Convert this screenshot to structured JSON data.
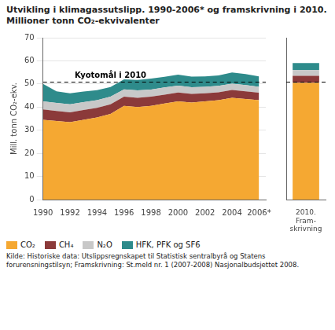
{
  "chart_data": [
    {
      "type": "area",
      "title": "Utvikling i klimagassutslipp. 1990-2006* og framskrivning i 2010.",
      "subtitle": "Millioner tonn CO₂-ekvivalenter",
      "ylabel": "Mill. tonn CO₂-ekv.",
      "source": "Kilde: Historiske data: Utslippsregnskapet til Statistisk sentralbyrå og Statens forurensningstilsyn; Framskrivning: St.meld nr. 1 (2007-2008) Nasjonalbudsjettet 2008.",
      "x": [
        1990,
        1991,
        1992,
        1993,
        1994,
        1995,
        1996,
        1997,
        1998,
        1999,
        2000,
        2001,
        2002,
        2003,
        2004,
        2005,
        2006
      ],
      "series": [
        {
          "name": "CO₂",
          "color": "#F5A832",
          "values": [
            34.5,
            34.0,
            33.5,
            34.5,
            35.5,
            37.0,
            40.5,
            40.0,
            40.5,
            41.5,
            42.5,
            42.0,
            42.5,
            43.0,
            44.0,
            43.5,
            43.0
          ]
        },
        {
          "name": "CH₄",
          "color": "#8B3A3A",
          "values": [
            4.5,
            4.3,
            4.2,
            4.2,
            4.2,
            4.2,
            4.0,
            4.0,
            4.0,
            3.9,
            3.8,
            3.7,
            3.5,
            3.4,
            3.4,
            3.3,
            3.2
          ]
        },
        {
          "name": "N₂O",
          "color": "#C8C8C8",
          "values": [
            3.5,
            3.5,
            3.5,
            3.4,
            3.3,
            3.3,
            3.2,
            3.2,
            3.1,
            3.1,
            3.0,
            2.9,
            2.8,
            2.8,
            2.7,
            2.7,
            2.6
          ]
        },
        {
          "name": "HFK, PFK og SF6",
          "color": "#2E8B8B",
          "values": [
            7.5,
            5.0,
            4.8,
            4.6,
            4.3,
            4.2,
            4.3,
            4.5,
            4.7,
            4.6,
            4.7,
            4.6,
            4.5,
            4.5,
            4.9,
            4.8,
            4.5
          ]
        }
      ],
      "stacked": true,
      "xlim": [
        1990,
        2006.5
      ],
      "xticks": [
        1990,
        1992,
        1994,
        1996,
        1998,
        2000,
        2002,
        2004,
        {
          "value": 2006,
          "label": "2006*"
        }
      ],
      "ylim": [
        0,
        70
      ],
      "yticks": [
        0,
        10,
        20,
        30,
        40,
        50,
        60,
        70
      ],
      "grid": true,
      "annotations": [
        {
          "type": "hline",
          "y": 50.8,
          "x": 1995,
          "label": "Kyotomål i 2010",
          "line_style": "dashed"
        }
      ]
    },
    {
      "type": "bar",
      "categories": [
        "2010.\nFram-\nskrivning"
      ],
      "series": [
        {
          "name": "CO₂",
          "color": "#F5A832",
          "values": [
            50.5
          ]
        },
        {
          "name": "CH₄",
          "color": "#8B3A3A",
          "values": [
            3.0
          ]
        },
        {
          "name": "N₂O",
          "color": "#C8C8C8",
          "values": [
            2.5
          ]
        },
        {
          "name": "HFK, PFK og SF6",
          "color": "#2E8B8B",
          "values": [
            3.0
          ]
        }
      ],
      "stacked": true,
      "ylim": [
        0,
        70
      ],
      "grid": false,
      "tick_labels": "x",
      "annotations": [
        {
          "type": "hline",
          "y": 50.8,
          "line_style": "dashed"
        }
      ]
    }
  ]
}
